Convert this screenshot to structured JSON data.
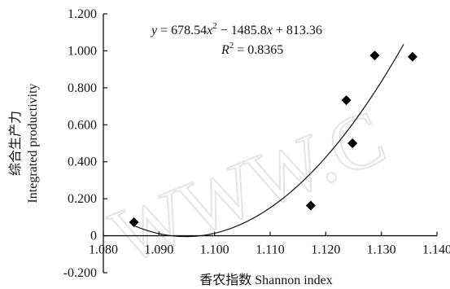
{
  "chart_data": {
    "type": "scatter",
    "xlabel": "香农指数 Shannon index",
    "ylabel_cn": "综合生产力",
    "ylabel_en": "Integrated productivity",
    "xlim": [
      1.08,
      1.14
    ],
    "ylim": [
      -0.2,
      1.2
    ],
    "x_ticks": [
      "1.080",
      "1.090",
      "1.100",
      "1.110",
      "1.120",
      "1.130",
      "1.140"
    ],
    "y_ticks": [
      "-0.200",
      "0",
      "0.200",
      "0.400",
      "0.600",
      "0.800",
      "1.000",
      "1.200"
    ],
    "grid": false,
    "points": [
      {
        "x": 1.0855,
        "y": 0.073
      },
      {
        "x": 1.1173,
        "y": 0.163
      },
      {
        "x": 1.1237,
        "y": 0.733
      },
      {
        "x": 1.1248,
        "y": 0.5
      },
      {
        "x": 1.1288,
        "y": 0.975
      },
      {
        "x": 1.1356,
        "y": 0.968
      }
    ],
    "fit": {
      "type": "quadratic",
      "a": 678.54,
      "b": -1485.8,
      "c": 813.36,
      "x_range": [
        1.0855,
        1.134
      ],
      "equation": {
        "y": "y",
        "eq": " = 678.54",
        "x1": "x",
        "sup1": "2",
        "mid": " − 1485.8",
        "x2": "x",
        "tail": " + 813.36"
      },
      "r2": {
        "r": "R",
        "sup": "2",
        "value": " = 0.8365"
      }
    }
  },
  "watermark": "WWW.C"
}
